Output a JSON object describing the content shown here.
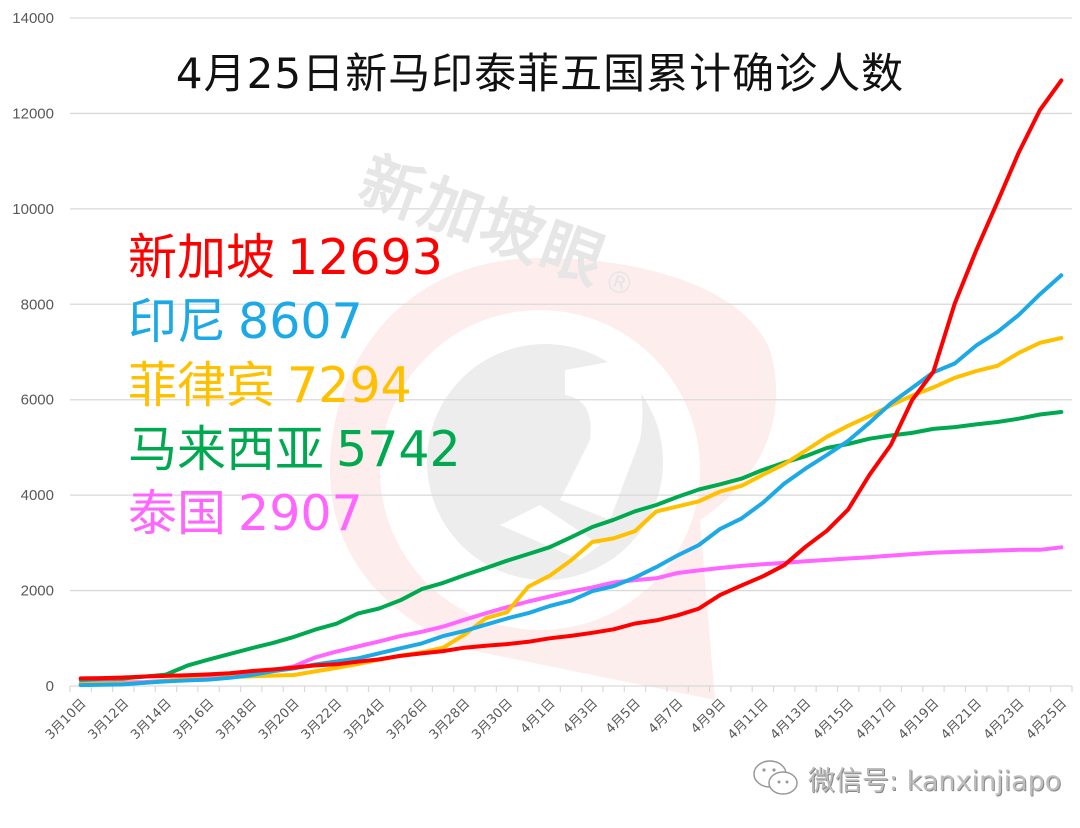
{
  "chart_data": {
    "type": "line",
    "title": "4月25日新马印泰菲五国累计确诊人数",
    "xlabel": "",
    "ylabel": "",
    "ylim": [
      0,
      14000
    ],
    "yticks": [
      0,
      2000,
      4000,
      6000,
      8000,
      10000,
      12000,
      14000
    ],
    "grid": true,
    "legend_position": "upper-left (inline text labels)",
    "x": [
      "3月10日",
      "3月11日",
      "3月12日",
      "3月13日",
      "3月14日",
      "3月15日",
      "3月16日",
      "3月17日",
      "3月18日",
      "3月19日",
      "3月20日",
      "3月21日",
      "3月22日",
      "3月23日",
      "3月24日",
      "3月25日",
      "3月26日",
      "3月27日",
      "3月28日",
      "3月29日",
      "3月30日",
      "3月31日",
      "4月1日",
      "4月2日",
      "4月3日",
      "4月4日",
      "4月5日",
      "4月6日",
      "4月7日",
      "4月8日",
      "4月9日",
      "4月10日",
      "4月11日",
      "4月12日",
      "4月13日",
      "4月14日",
      "4月15日",
      "4月16日",
      "4月17日",
      "4月18日",
      "4月19日",
      "4月20日",
      "4月21日",
      "4月22日",
      "4月23日",
      "4月24日",
      "4月25日"
    ],
    "xtick_labels": [
      "3月10日",
      "3月12日",
      "3月14日",
      "3月16日",
      "3月18日",
      "3月20日",
      "3月22日",
      "3月24日",
      "3月26日",
      "3月28日",
      "3月30日",
      "4月1日",
      "4月3日",
      "4月5日",
      "4月7日",
      "4月9日",
      "4月11日",
      "4月13日",
      "4月15日",
      "4月17日",
      "4月19日",
      "4月21日",
      "4月23日",
      "4月25日"
    ],
    "series": [
      {
        "name": "新加坡",
        "color": "#ff0000",
        "final": 12693,
        "values": [
          160,
          166,
          178,
          200,
          212,
          226,
          243,
          266,
          313,
          345,
          385,
          432,
          455,
          509,
          558,
          631,
          683,
          732,
          802,
          844,
          879,
          926,
          1000,
          1049,
          1114,
          1189,
          1309,
          1375,
          1481,
          1623,
          1910,
          2108,
          2299,
          2532,
          2918,
          3252,
          3699,
          4427,
          5050,
          5992,
          6588,
          8014,
          9125,
          10141,
          11178,
          12075,
          12693
        ]
      },
      {
        "name": "印尼",
        "color": "#1ca9e6",
        "final": 8607,
        "values": [
          19,
          27,
          34,
          69,
          96,
          117,
          134,
          172,
          227,
          309,
          369,
          450,
          514,
          579,
          686,
          790,
          893,
          1046,
          1155,
          1285,
          1414,
          1528,
          1677,
          1790,
          1986,
          2092,
          2273,
          2491,
          2738,
          2956,
          3293,
          3512,
          3842,
          4241,
          4557,
          4839,
          5136,
          5516,
          5923,
          6248,
          6575,
          6760,
          7135,
          7418,
          7775,
          8211,
          8607
        ]
      },
      {
        "name": "菲律宾",
        "color": "#ffc000",
        "final": 7294,
        "values": [
          33,
          49,
          52,
          64,
          111,
          140,
          142,
          187,
          202,
          217,
          230,
          307,
          380,
          462,
          552,
          636,
          707,
          803,
          1075,
          1418,
          1546,
          2084,
          2311,
          2633,
          3018,
          3094,
          3246,
          3660,
          3764,
          3870,
          4076,
          4195,
          4428,
          4648,
          4932,
          5223,
          5453,
          5660,
          5878,
          6087,
          6259,
          6459,
          6599,
          6710,
          6981,
          7192,
          7294
        ]
      },
      {
        "name": "马来西亚",
        "color": "#00a94f",
        "final": 5742,
        "values": [
          129,
          149,
          158,
          197,
          238,
          428,
          553,
          673,
          790,
          900,
          1030,
          1183,
          1306,
          1518,
          1624,
          1796,
          2031,
          2161,
          2320,
          2470,
          2626,
          2766,
          2908,
          3116,
          3333,
          3483,
          3662,
          3793,
          3963,
          4119,
          4228,
          4346,
          4530,
          4683,
          4817,
          4987,
          5072,
          5182,
          5251,
          5305,
          5389,
          5425,
          5482,
          5532,
          5603,
          5691,
          5742
        ]
      },
      {
        "name": "泰国",
        "color": "#ff66ff",
        "final": 2907,
        "values": [
          53,
          70,
          75,
          82,
          114,
          147,
          177,
          212,
          272,
          322,
          411,
          599,
          721,
          827,
          934,
          1045,
          1136,
          1245,
          1388,
          1524,
          1651,
          1771,
          1875,
          1978,
          2067,
          2169,
          2220,
          2258,
          2369,
          2423,
          2473,
          2518,
          2551,
          2579,
          2613,
          2643,
          2672,
          2700,
          2733,
          2765,
          2792,
          2811,
          2826,
          2839,
          2854,
          2854,
          2907
        ]
      }
    ]
  },
  "title": "4月25日新马印泰菲五国累计确诊人数",
  "legend": [
    {
      "label": "新加坡",
      "value": "12693",
      "color": "#ff0000"
    },
    {
      "label": "印尼",
      "value": "8607",
      "color": "#1ca9e6"
    },
    {
      "label": "菲律宾",
      "value": "7294",
      "color": "#ffc000"
    },
    {
      "label": "马来西亚",
      "value": "5742",
      "color": "#00a94f"
    },
    {
      "label": "泰国",
      "value": "2907",
      "color": "#ff66ff"
    }
  ],
  "watermark": {
    "text": "新加坡眼",
    "reg": "®"
  },
  "footer": {
    "icon": "wechat-icon",
    "text": "微信号: kanxinjiapo"
  }
}
